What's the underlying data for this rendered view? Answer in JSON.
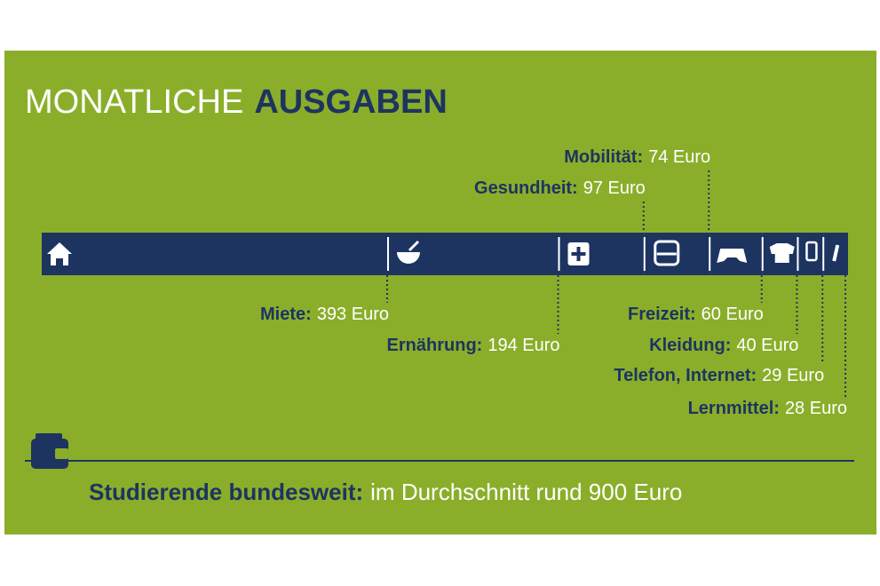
{
  "chart_data": {
    "type": "bar",
    "title": "MONATLICHE",
    "title_emphasis": "AUSGABEN",
    "categories": [
      "Miete:",
      "Ernährung:",
      "Gesundheit:",
      "Mobilität:",
      "Freizeit:",
      "Kleidung:",
      "Telefon, Internet:",
      "Lernmittel:"
    ],
    "values": [
      393,
      194,
      97,
      74,
      60,
      40,
      29,
      28
    ],
    "value_labels": [
      "393 Euro",
      "194 Euro",
      "97 Euro",
      "74 Euro",
      "60 Euro",
      "40 Euro",
      "29 Euro",
      "28 Euro"
    ],
    "color": "#1d3461",
    "footer_label": "Studierende bundesweit:",
    "footer_text": "im Durchschnitt rund 900 Euro"
  }
}
